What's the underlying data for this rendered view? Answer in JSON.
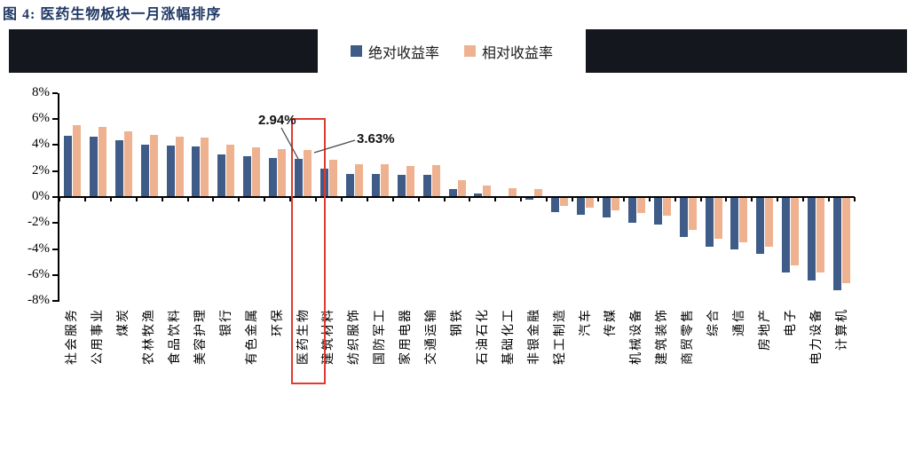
{
  "title": "图 4: 医药生物板块一月涨幅排序",
  "legend": [
    {
      "label": "绝对收益率",
      "color": "#3f5c88"
    },
    {
      "label": "相对收益率",
      "color": "#efb291"
    }
  ],
  "colors": {
    "absolute_bar": "#3f5c88",
    "relative_bar": "#efb291",
    "title_text": "#1f3864",
    "highlight_box": "#df3b31",
    "header_band": "#14171d",
    "axis": "#000000"
  },
  "chart_data": {
    "type": "bar",
    "title": "图 4: 医药生物板块一月涨幅排序",
    "categories": [
      "社会服务",
      "公用事业",
      "煤炭",
      "农林牧渔",
      "食品饮料",
      "美容护理",
      "银行",
      "有色金属",
      "环保",
      "医药生物",
      "建筑材料",
      "纺织服饰",
      "国防军工",
      "家用电器",
      "交通运输",
      "钢铁",
      "石油石化",
      "基础化工",
      "非银金融",
      "轻工制造",
      "汽车",
      "传媒",
      "机械设备",
      "建筑装饰",
      "商贸零售",
      "综合",
      "通信",
      "房地产",
      "电子",
      "电力设备",
      "计算机"
    ],
    "series": [
      {
        "name": "绝对收益率",
        "color": "#3f5c88",
        "values": [
          4.7,
          4.65,
          4.35,
          4.05,
          3.95,
          3.9,
          3.25,
          3.15,
          3.0,
          2.94,
          2.2,
          1.8,
          1.78,
          1.7,
          1.7,
          0.6,
          0.25,
          0.02,
          -0.2,
          -1.15,
          -1.35,
          -1.55,
          -1.95,
          -2.1,
          -3.05,
          -3.8,
          -4.0,
          -4.4,
          -5.8,
          -6.4,
          -7.2
        ]
      },
      {
        "name": "相对收益率",
        "color": "#efb291",
        "values": [
          5.5,
          5.4,
          5.05,
          4.75,
          4.65,
          4.6,
          4.0,
          3.85,
          3.7,
          3.63,
          2.9,
          2.55,
          2.5,
          2.4,
          2.45,
          1.3,
          0.9,
          0.7,
          0.6,
          -0.65,
          -0.8,
          -1.0,
          -1.25,
          -1.4,
          -2.5,
          -3.2,
          -3.45,
          -3.8,
          -5.25,
          -5.8,
          -6.6
        ]
      }
    ],
    "xlabel": "",
    "ylabel": "",
    "ylim": [
      -8,
      8
    ],
    "ytick_step": 2,
    "ytick_labels": [
      "8%",
      "6%",
      "4%",
      "2%",
      "0%",
      "-2%",
      "-4%",
      "-6%",
      "-8%"
    ],
    "grid": false,
    "legend_position": "top-center",
    "highlight": {
      "category": "医药生物",
      "box_color": "#df3b31"
    },
    "annotations": [
      {
        "text": "2.94%",
        "series": "绝对收益率",
        "category": "医药生物"
      },
      {
        "text": "3.63%",
        "series": "相对收益率",
        "category": "医药生物"
      }
    ]
  }
}
